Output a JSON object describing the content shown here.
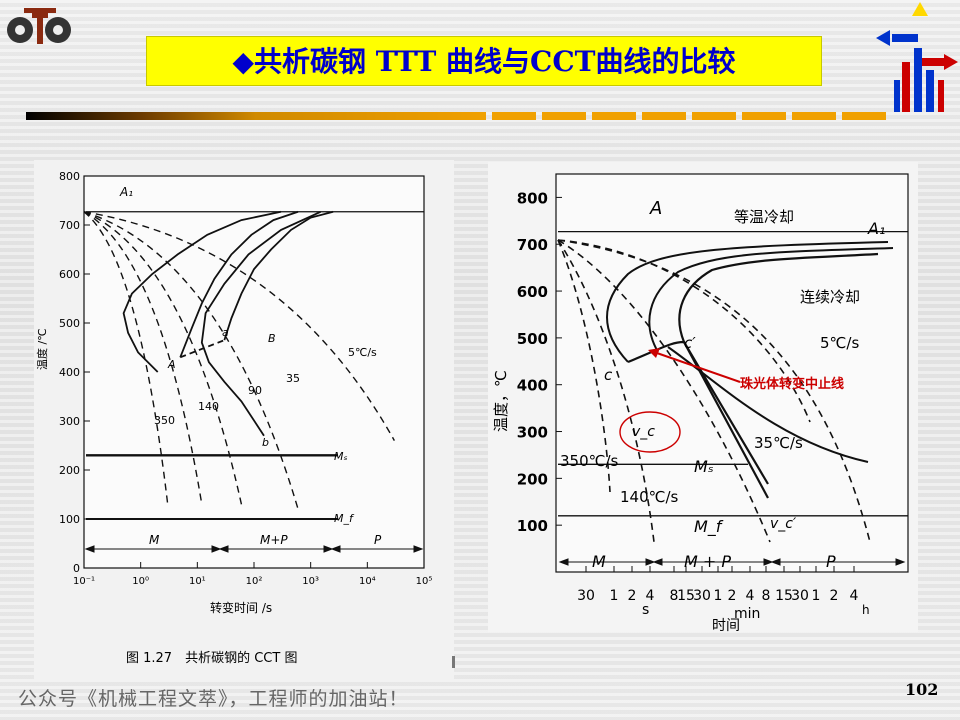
{
  "header": {
    "title": "◆共析碳钢 TTT 曲线与CCT曲线的比较",
    "logo_icon": "gear-logo-icon",
    "accent_color": "#0000cc",
    "title_bg": "#ffff00"
  },
  "footer": {
    "text": "公众号《机械工程文萃》，工程师的加油站！",
    "page_number": "102"
  },
  "chart_data": [
    {
      "type": "line",
      "caption": "图 1.27　共析碳钢的 CCT 图",
      "xlabel": "转变时间 /s",
      "ylabel": "温度 /℃",
      "x_scale": "log",
      "xlim": [
        0.1,
        100000
      ],
      "ylim": [
        0,
        800
      ],
      "x_ticks": [
        "10⁻¹",
        "10⁰",
        "10¹",
        "10²",
        "10³",
        "10⁴",
        "10⁵"
      ],
      "y_ticks": [
        "0",
        "100",
        "200",
        "300",
        "400",
        "500",
        "600",
        "700",
        "800"
      ],
      "lines": {
        "A1": 727,
        "Ms": 230,
        "Mf": 100
      },
      "labels": {
        "A1": "A₁",
        "Ms": "Mₛ",
        "Mf": "M_f",
        "A": "A",
        "B": "B",
        "a": "a",
        "b": "b"
      },
      "cooling_rates": [
        "350",
        "140",
        "90",
        "35",
        "5℃/s"
      ],
      "regions": [
        "M",
        "M+P",
        "P"
      ],
      "series": [
        {
          "name": "TTT start",
          "x": [
            2.0,
            0.9,
            0.6,
            0.5,
            0.7,
            1.6,
            4.5,
            15,
            60,
            300
          ],
          "y": [
            400,
            440,
            480,
            520,
            560,
            600,
            640,
            680,
            710,
            727
          ]
        },
        {
          "name": "TTT finish",
          "x": [
            150,
            60,
            30,
            16,
            12,
            14,
            30,
            80,
            300,
            1500
          ],
          "y": [
            270,
            340,
            380,
            420,
            460,
            520,
            580,
            640,
            690,
            727
          ]
        },
        {
          "name": "CCT start",
          "x": [
            5,
            8,
            12,
            20,
            40,
            90,
            220,
            600
          ],
          "y": [
            430,
            490,
            540,
            590,
            640,
            680,
            710,
            727
          ]
        },
        {
          "name": "CCT finish",
          "x": [
            30,
            40,
            60,
            100,
            200,
            450,
            1000,
            2500
          ],
          "y": [
            465,
            510,
            560,
            610,
            650,
            690,
            715,
            727
          ]
        },
        {
          "name": "pearlite stop line",
          "x": [
            5,
            30
          ],
          "y": [
            430,
            465
          ]
        }
      ],
      "cooling_curves": [
        {
          "name": "350",
          "end_x": 3
        },
        {
          "name": "140",
          "end_x": 12
        },
        {
          "name": "90",
          "end_x": 60
        },
        {
          "name": "35",
          "end_x": 600
        },
        {
          "name": "5℃/s",
          "end_x": 30000
        }
      ]
    },
    {
      "type": "line",
      "ylabel": "温度，℃",
      "xlabel": "时间",
      "ylim": [
        0,
        850
      ],
      "y_ticks": [
        "100",
        "200",
        "300",
        "400",
        "500",
        "600",
        "700",
        "800"
      ],
      "x_ticks": [
        "30",
        "1",
        "2",
        "4",
        "8",
        "15",
        "30",
        "1",
        "2",
        "4",
        "8",
        "15",
        "30",
        "1",
        "2",
        "4"
      ],
      "x_unit_labels": [
        "s",
        "min",
        "h"
      ],
      "lines": {
        "A1": 727,
        "Ms": 230,
        "Mf": 120
      },
      "labels": {
        "A": "A",
        "A1": "A₁",
        "Ms": "Mₛ",
        "Mf": "M_f",
        "c": "c",
        "c_prime": "c′",
        "vc": "v_c",
        "vc_prime": "v_c′",
        "isothermal": "等温冷却",
        "continuous": "连续冷却"
      },
      "cooling_rates": [
        "350℃/s",
        "140℃/s",
        "35℃/s",
        "5℃/s"
      ],
      "regions": [
        "M",
        "M + P",
        "P"
      ],
      "annotation": {
        "text": "珠光体转变中止线",
        "color": "#cc0000"
      }
    }
  ]
}
